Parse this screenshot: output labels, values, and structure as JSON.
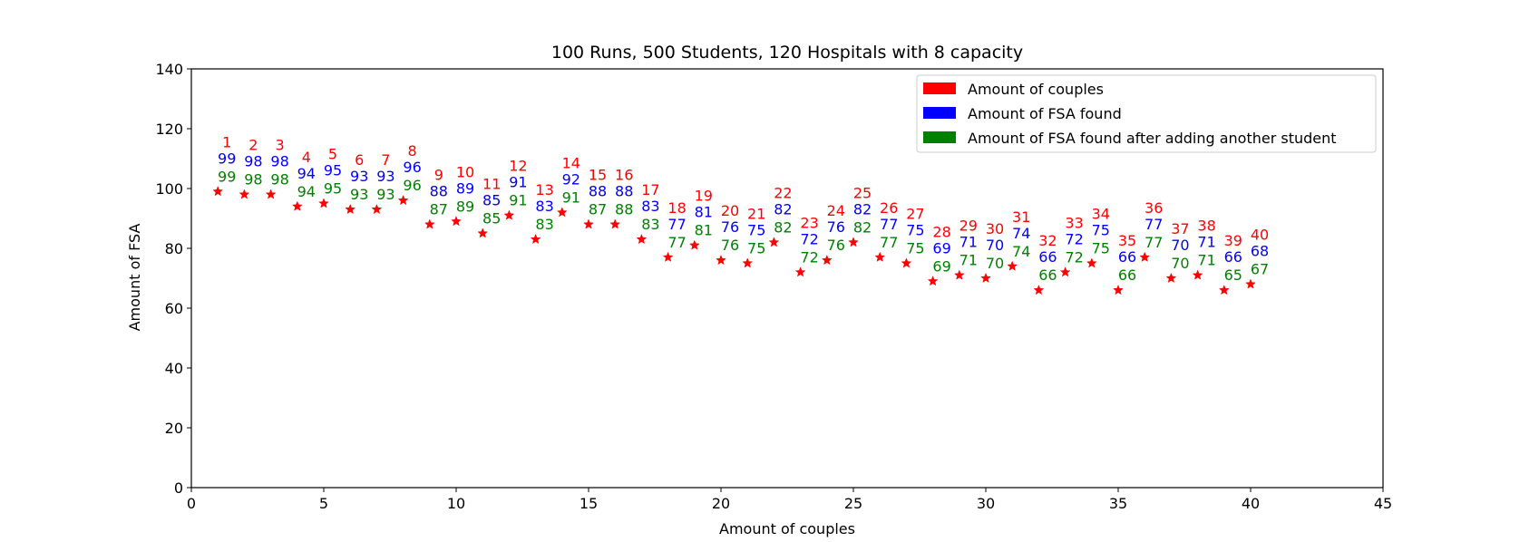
{
  "chart_data": {
    "type": "scatter",
    "title": "100 Runs, 500 Students, 120 Hospitals with 8 capacity",
    "xlabel": "Amount of couples",
    "ylabel": "Amount of FSA",
    "xlim": [
      0,
      45
    ],
    "ylim": [
      0,
      140
    ],
    "xticks": [
      0,
      5,
      10,
      15,
      20,
      25,
      30,
      35,
      40,
      45
    ],
    "yticks": [
      0,
      20,
      40,
      60,
      80,
      100,
      120,
      140
    ],
    "grid": false,
    "legend_position": "top-right",
    "x": [
      1,
      2,
      3,
      4,
      5,
      6,
      7,
      8,
      9,
      10,
      11,
      12,
      13,
      14,
      15,
      16,
      17,
      18,
      19,
      20,
      21,
      22,
      23,
      24,
      25,
      26,
      27,
      28,
      29,
      30,
      31,
      32,
      33,
      34,
      35,
      36,
      37,
      38,
      39,
      40
    ],
    "series": [
      {
        "name": "Amount of couples",
        "color": "#ff0000",
        "values": [
          1,
          2,
          3,
          4,
          5,
          6,
          7,
          8,
          9,
          10,
          11,
          12,
          13,
          14,
          15,
          16,
          17,
          18,
          19,
          20,
          21,
          22,
          23,
          24,
          25,
          26,
          27,
          28,
          29,
          30,
          31,
          32,
          33,
          34,
          35,
          36,
          37,
          38,
          39,
          40
        ]
      },
      {
        "name": "Amount of FSA found",
        "color": "#0000ff",
        "values": [
          99,
          98,
          98,
          94,
          95,
          93,
          93,
          96,
          88,
          89,
          85,
          91,
          83,
          92,
          88,
          88,
          83,
          77,
          81,
          76,
          75,
          82,
          72,
          76,
          82,
          77,
          75,
          69,
          71,
          70,
          74,
          66,
          72,
          75,
          66,
          77,
          70,
          71,
          66,
          68
        ]
      },
      {
        "name": "Amount of FSA found after adding another student",
        "color": "#008000",
        "values": [
          99,
          98,
          98,
          94,
          95,
          93,
          93,
          96,
          87,
          89,
          85,
          91,
          83,
          91,
          87,
          88,
          83,
          77,
          81,
          76,
          75,
          82,
          72,
          76,
          82,
          77,
          75,
          69,
          71,
          70,
          74,
          66,
          72,
          75,
          66,
          77,
          70,
          71,
          65,
          67
        ]
      }
    ],
    "marker": "star",
    "marker_color": "#ff0000"
  }
}
